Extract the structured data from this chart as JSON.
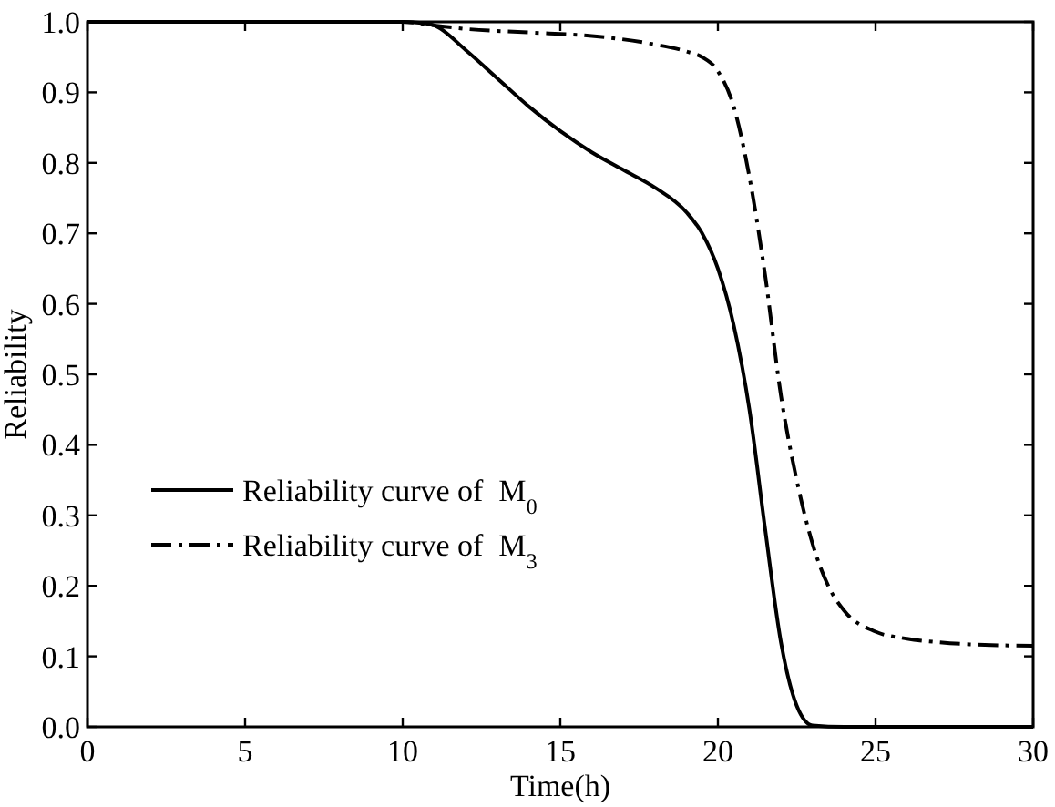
{
  "chart_data": {
    "type": "line",
    "xlabel": "Time(h)",
    "ylabel": "Reliability",
    "xlim": [
      0,
      30
    ],
    "ylim": [
      0,
      1
    ],
    "xticks": [
      0,
      5,
      10,
      15,
      20,
      25,
      30
    ],
    "yticks": [
      {
        "value": 0,
        "label": "0.0"
      },
      0.1,
      0.2,
      0.3,
      0.4,
      0.5,
      0.6,
      0.7,
      0.8,
      0.9,
      {
        "value": 1,
        "label": "1.0"
      }
    ],
    "grid": false,
    "legend": "bottom left",
    "marker": "none",
    "series": [
      {
        "name": "Reliability curve of  M$_{0}$",
        "color": "#000000",
        "line_style": "solid",
        "x": [
          0,
          5,
          10,
          10.7,
          11,
          12,
          13,
          14,
          15,
          16,
          17,
          18,
          19,
          19.5,
          20,
          20.5,
          21,
          21.5,
          22,
          22.5,
          23,
          24,
          30
        ],
        "values": [
          1,
          1,
          1,
          0.998,
          0.995,
          0.96,
          0.92,
          0.88,
          0.845,
          0.815,
          0.79,
          0.765,
          0.73,
          0.7,
          0.65,
          0.57,
          0.45,
          0.28,
          0.12,
          0.03,
          0.002,
          0,
          0
        ]
      },
      {
        "name": "Reliability curve of  M$_{3}$",
        "color": "#000000",
        "line_style": "dashed",
        "x": [
          0,
          5,
          10,
          11,
          12,
          14,
          16,
          18,
          19,
          19.5,
          20,
          20.5,
          21,
          21.5,
          22,
          22.5,
          23,
          23.5,
          24,
          25,
          26,
          27,
          28,
          30
        ],
        "values": [
          1,
          1,
          1,
          0.995,
          0.99,
          0.985,
          0.98,
          0.968,
          0.958,
          0.95,
          0.93,
          0.88,
          0.78,
          0.64,
          0.47,
          0.35,
          0.26,
          0.2,
          0.165,
          0.135,
          0.125,
          0.12,
          0.117,
          0.115
        ]
      }
    ]
  }
}
